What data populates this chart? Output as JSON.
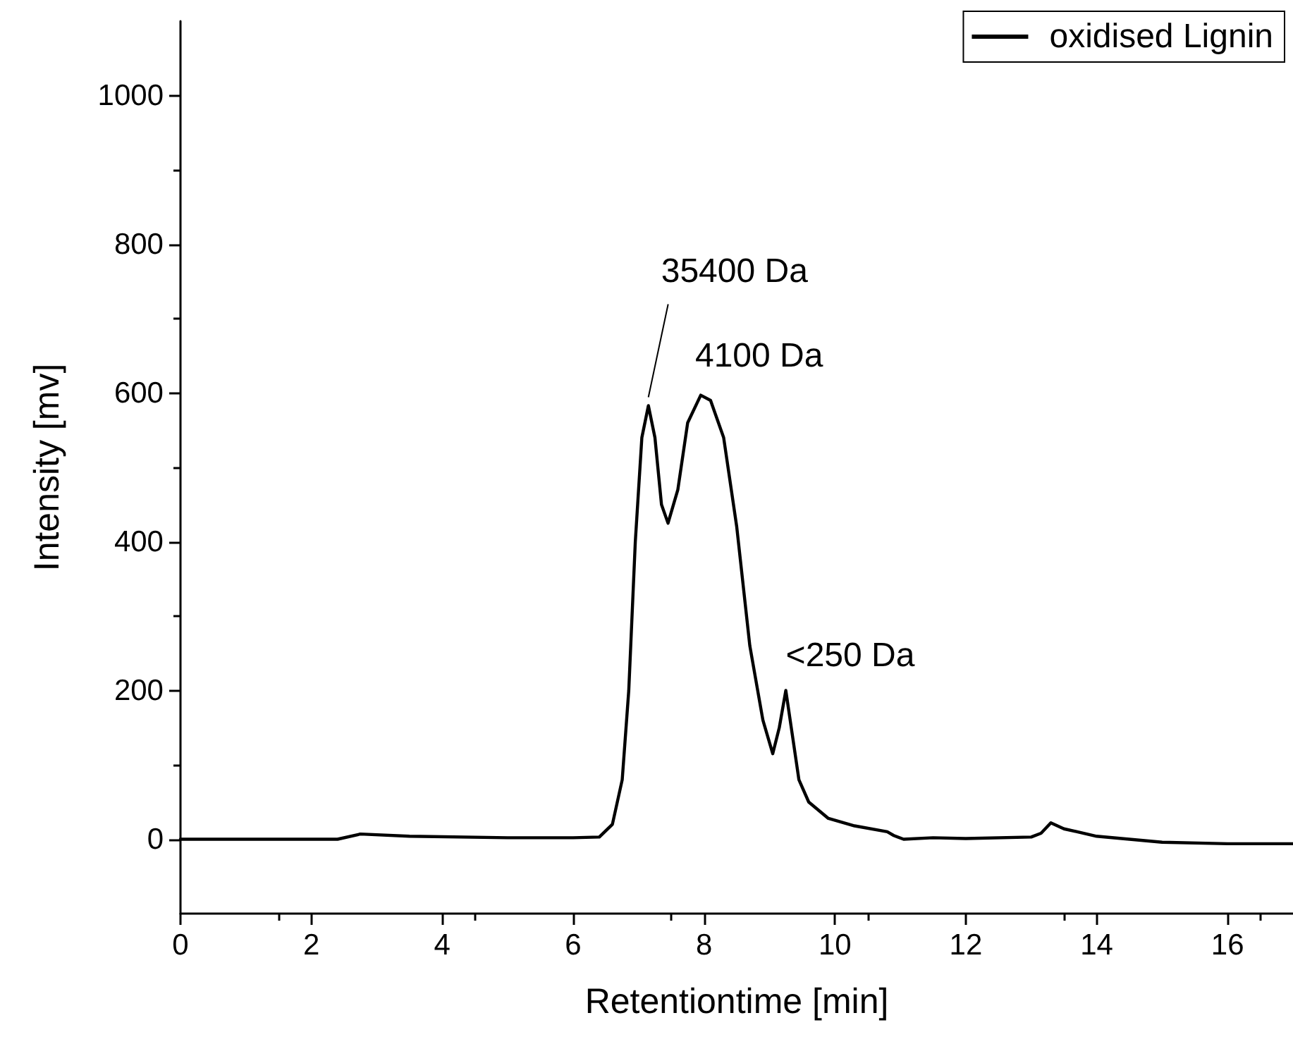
{
  "chart_data": {
    "type": "line",
    "xlabel": "Retentiontime [min]",
    "ylabel": "Intensity [mv]",
    "xlim": [
      0,
      17
    ],
    "xticks": [
      0,
      2,
      4,
      6,
      8,
      10,
      12,
      14,
      16
    ],
    "ylim": [
      -100,
      1100
    ],
    "yticks": [
      0,
      200,
      400,
      600,
      800,
      1000
    ],
    "grid": false,
    "legend": "top right",
    "marker": "none",
    "line_style": "solid",
    "series": [
      {
        "name": "oxidised Lignin",
        "color": "#000000",
        "x": [
          0,
          2.4,
          2.75,
          3.5,
          5,
          6,
          6.4,
          6.6,
          6.75,
          6.85,
          6.95,
          7.05,
          7.15,
          7.25,
          7.35,
          7.45,
          7.6,
          7.75,
          7.95,
          8.1,
          8.3,
          8.5,
          8.7,
          8.9,
          9.05,
          9.15,
          9.25,
          9.35,
          9.45,
          9.6,
          9.9,
          10.3,
          10.8,
          10.9,
          11.05,
          11.5,
          12,
          13,
          13.15,
          13.3,
          13.5,
          14,
          15,
          16,
          17
        ],
        "values": [
          0,
          0,
          7,
          4,
          2,
          2,
          3,
          20,
          80,
          200,
          400,
          540,
          583,
          540,
          450,
          425,
          470,
          560,
          597,
          590,
          540,
          420,
          260,
          160,
          115,
          150,
          200,
          140,
          80,
          50,
          28,
          18,
          10,
          5,
          0,
          2,
          1,
          3,
          8,
          22,
          14,
          4,
          -4,
          -6,
          -6
        ]
      }
    ],
    "annotations": [
      {
        "text": "35400 Da",
        "x": 7.15,
        "y": 583
      },
      {
        "text": "4100 Da",
        "x": 7.95,
        "y": 597
      },
      {
        "text": "<250 Da",
        "x": 9.25,
        "y": 200
      }
    ]
  }
}
